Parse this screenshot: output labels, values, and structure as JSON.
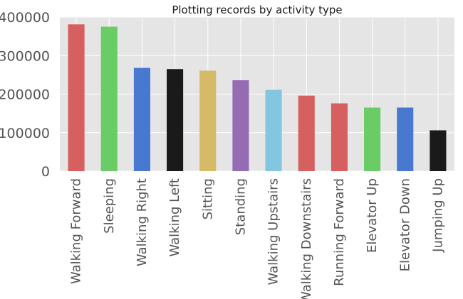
{
  "chart_data": {
    "type": "bar",
    "title": "Plotting records by activity type",
    "xlabel": "",
    "ylabel": "",
    "categories": [
      "Walking Forward",
      "Sleeping",
      "Walking Right",
      "Walking Left",
      "Sitting",
      "Standing",
      "Walking Upstairs",
      "Walking Downstairs",
      "Running Forward",
      "Elevator Up",
      "Elevator Down",
      "Jumping Up"
    ],
    "values": [
      381000,
      375000,
      268000,
      265000,
      261000,
      236000,
      211000,
      196000,
      176000,
      165000,
      165000,
      106000
    ],
    "colors": [
      "#d65f5f",
      "#6acc65",
      "#4878cf",
      "#1a1a1a",
      "#d5bb67",
      "#956cb4",
      "#82c6e2",
      "#d65f5f",
      "#d65f5f",
      "#6acc65",
      "#4878cf",
      "#1a1a1a"
    ],
    "ylim": [
      0,
      400000
    ],
    "yticks": [
      0,
      100000,
      200000,
      300000,
      400000
    ],
    "grid": true,
    "background": "#e5e5e5",
    "gridColor": "#ffffff"
  }
}
